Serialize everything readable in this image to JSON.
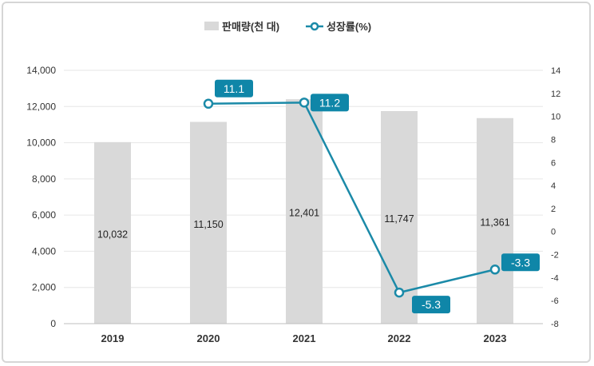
{
  "chart_data": {
    "type": "bar+line",
    "categories": [
      "2019",
      "2020",
      "2021",
      "2022",
      "2023"
    ],
    "series": [
      {
        "name": "판매량(천 대)",
        "type": "bar",
        "axis": "left",
        "values": [
          10032,
          11150,
          12401,
          11747,
          11361
        ],
        "labels": [
          "10,032",
          "11,150",
          "12,401",
          "11,747",
          "11,361"
        ],
        "color": "#d9d9d9"
      },
      {
        "name": "성장률(%)",
        "type": "line",
        "axis": "right",
        "values": [
          null,
          11.1,
          11.2,
          -5.3,
          -3.3
        ],
        "labels": [
          "",
          "11.1",
          "11.2",
          "-5.3",
          "-3.3"
        ],
        "color": "#1b8aa8"
      }
    ],
    "y_left": {
      "range": [
        0,
        14000
      ],
      "ticks": [
        "0",
        "2,000",
        "4,000",
        "6,000",
        "8,000",
        "10,000",
        "12,000",
        "14,000"
      ]
    },
    "y_right": {
      "range": [
        -8,
        14
      ],
      "ticks": [
        "-8",
        "-6",
        "-4",
        "-2",
        "0",
        "2",
        "4",
        "6",
        "8",
        "10",
        "12",
        "14"
      ]
    },
    "grid": true,
    "legend_position": "top",
    "label_box_color": "#0f86a8"
  }
}
